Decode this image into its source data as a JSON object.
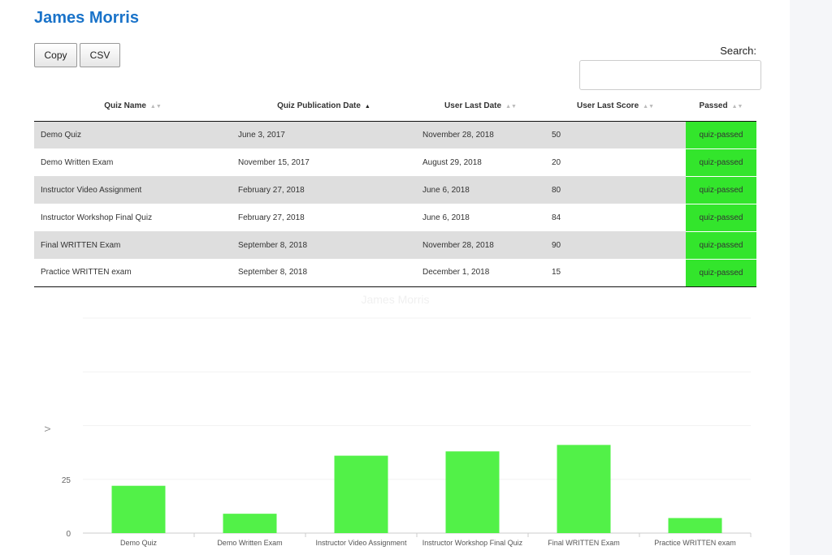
{
  "page": {
    "title": "James Morris"
  },
  "toolbar": {
    "copy_label": "Copy",
    "csv_label": "CSV"
  },
  "search": {
    "label": "Search:",
    "value": "",
    "placeholder": ""
  },
  "table": {
    "headers": [
      "Quiz Name",
      "Quiz Publication Date",
      "User Last Date",
      "User Last Score",
      "Passed"
    ],
    "sorted_column": "Quiz Publication Date",
    "rows": [
      [
        "Demo Quiz",
        "June 3, 2017",
        "November 28, 2018",
        "50",
        "quiz-passed"
      ],
      [
        "Demo Written Exam",
        "November 15, 2017",
        "August 29, 2018",
        "20",
        "quiz-passed"
      ],
      [
        "Instructor Video Assignment",
        "February 27, 2018",
        "June 6, 2018",
        "80",
        "quiz-passed"
      ],
      [
        "Instructor Workshop Final Quiz",
        "February 27, 2018",
        "June 6, 2018",
        "84",
        "quiz-passed"
      ],
      [
        "Final WRITTEN Exam",
        "September 8, 2018",
        "November 28, 2018",
        "90",
        "quiz-passed"
      ],
      [
        "Practice WRITTEN exam",
        "September 8, 2018",
        "December 1, 2018",
        "15",
        "quiz-passed"
      ]
    ]
  },
  "colors": {
    "passed": "#33e52c",
    "bar": "#52f148",
    "title": "#1a73c9"
  },
  "chart_data": {
    "type": "bar",
    "title": "James Morris",
    "ylabel": "V",
    "categories": [
      "Demo Quiz",
      "Demo Written Exam",
      "Instructor Video Assignment",
      "Instructor Workshop Final Quiz",
      "Final WRITTEN Exam",
      "Practice WRITTEN exam"
    ],
    "values": [
      22,
      9,
      36,
      38,
      41,
      7
    ],
    "yticks": [
      0,
      25
    ],
    "ylim": [
      0,
      100
    ],
    "grid": true
  }
}
